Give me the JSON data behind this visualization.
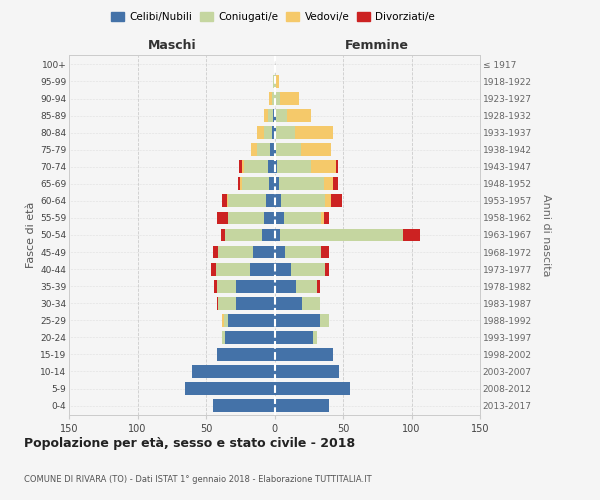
{
  "age_groups": [
    "0-4",
    "5-9",
    "10-14",
    "15-19",
    "20-24",
    "25-29",
    "30-34",
    "35-39",
    "40-44",
    "45-49",
    "50-54",
    "55-59",
    "60-64",
    "65-69",
    "70-74",
    "75-79",
    "80-84",
    "85-89",
    "90-94",
    "95-99",
    "100+"
  ],
  "birth_years": [
    "2013-2017",
    "2008-2012",
    "2003-2007",
    "1998-2002",
    "1993-1997",
    "1988-1992",
    "1983-1987",
    "1978-1982",
    "1973-1977",
    "1968-1972",
    "1963-1967",
    "1958-1962",
    "1953-1957",
    "1948-1952",
    "1943-1947",
    "1938-1942",
    "1933-1937",
    "1928-1932",
    "1923-1927",
    "1918-1922",
    "≤ 1917"
  ],
  "colors": {
    "celibi": "#4472a8",
    "coniugati": "#c5d6a0",
    "vedovi": "#f5c96a",
    "divorziati": "#cc2222"
  },
  "m_cel": [
    45,
    65,
    60,
    42,
    36,
    34,
    28,
    28,
    18,
    16,
    9,
    8,
    6,
    4,
    5,
    3,
    2,
    1,
    0,
    0,
    0
  ],
  "m_con": [
    0,
    0,
    0,
    0,
    2,
    3,
    13,
    14,
    25,
    25,
    27,
    26,
    28,
    20,
    17,
    10,
    6,
    4,
    2,
    1,
    0
  ],
  "m_ved": [
    0,
    0,
    0,
    0,
    0,
    1,
    0,
    0,
    0,
    0,
    0,
    0,
    1,
    1,
    2,
    4,
    5,
    3,
    2,
    0,
    0
  ],
  "m_div": [
    0,
    0,
    0,
    0,
    0,
    0,
    1,
    2,
    3,
    4,
    3,
    8,
    3,
    2,
    2,
    0,
    0,
    0,
    0,
    0,
    0
  ],
  "f_cel": [
    40,
    55,
    47,
    43,
    28,
    33,
    20,
    16,
    12,
    8,
    4,
    7,
    5,
    3,
    2,
    1,
    1,
    1,
    0,
    0,
    0
  ],
  "f_con": [
    0,
    0,
    0,
    0,
    3,
    7,
    13,
    15,
    25,
    26,
    90,
    27,
    32,
    33,
    25,
    18,
    14,
    8,
    4,
    1,
    0
  ],
  "f_ved": [
    0,
    0,
    0,
    0,
    0,
    0,
    0,
    0,
    0,
    0,
    0,
    2,
    4,
    7,
    18,
    22,
    28,
    18,
    14,
    2,
    0
  ],
  "f_div": [
    0,
    0,
    0,
    0,
    0,
    0,
    0,
    2,
    3,
    6,
    12,
    4,
    8,
    3,
    1,
    0,
    0,
    0,
    0,
    0,
    0
  ],
  "title": "Popolazione per età, sesso e stato civile - 2018",
  "subtitle": "COMUNE DI RIVARA (TO) - Dati ISTAT 1° gennaio 2018 - Elaborazione TUTTITALIA.IT",
  "xlabel_left": "Maschi",
  "xlabel_right": "Femmine",
  "ylabel_left": "Fasce di età",
  "ylabel_right": "Anni di nascita",
  "xlim": 150,
  "background_color": "#f5f5f5",
  "grid_color": "#cccccc",
  "legend_labels": [
    "Celibi/Nubili",
    "Coniugati/e",
    "Vedovi/e",
    "Divorziati/e"
  ]
}
